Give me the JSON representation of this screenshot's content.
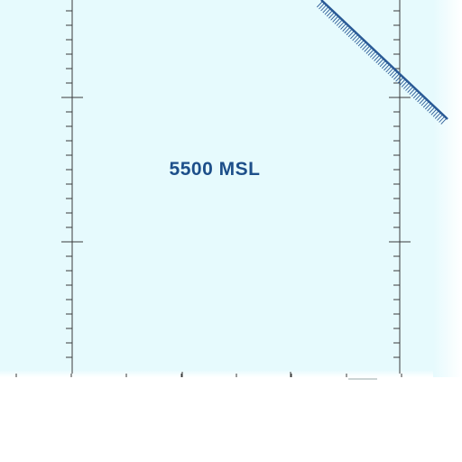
{
  "map": {
    "altitude_label": "5500 MSL",
    "colors": {
      "airspace_fill": "#e6fafd",
      "grid_line": "#3a3a3a",
      "boundary_line": "#2a5a96",
      "text": "#1d4f8a",
      "background": "#ffffff"
    }
  }
}
